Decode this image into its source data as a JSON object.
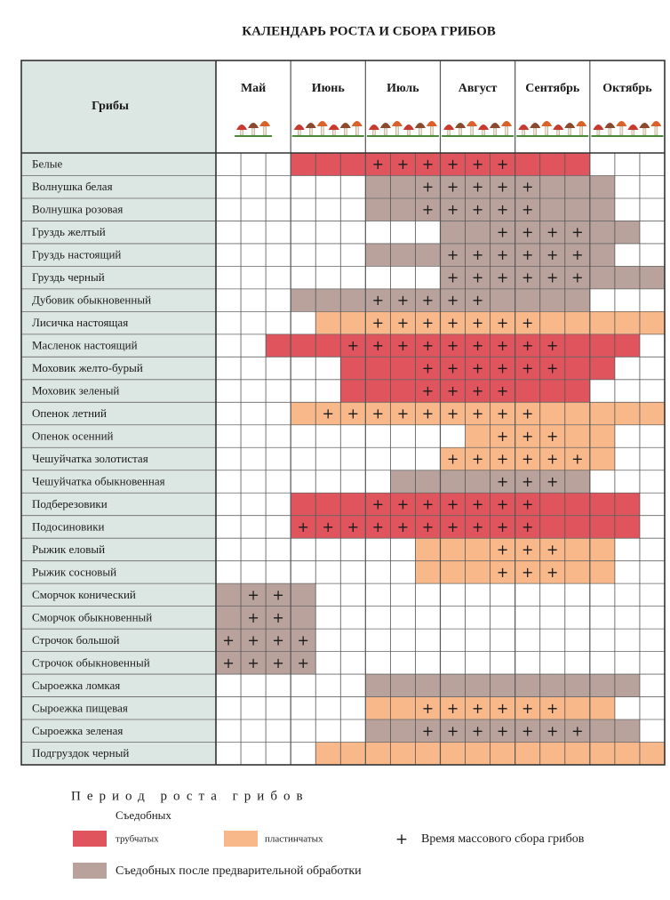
{
  "title": "КАЛЕНДАРЬ РОСТА И СБОРА ГРИБОВ",
  "header": {
    "corner": "Грибы",
    "months": [
      "Май",
      "Июнь",
      "Июль",
      "Август",
      "Сентябрь",
      "Октябрь"
    ]
  },
  "rows": [
    {
      "name": "Белые",
      "kind": 0,
      "period": [
        4,
        15
      ],
      "harvest": [
        7,
        12
      ]
    },
    {
      "name": "Волнушка белая",
      "kind": 2,
      "period": [
        7,
        16
      ],
      "harvest": [
        9,
        13
      ]
    },
    {
      "name": "Волнушка розовая",
      "kind": 2,
      "period": [
        7,
        16
      ],
      "harvest": [
        9,
        13
      ]
    },
    {
      "name": "Груздь желтый",
      "kind": 2,
      "period": [
        10,
        17
      ],
      "harvest": [
        12,
        15
      ]
    },
    {
      "name": "Груздь настоящий",
      "kind": 2,
      "period": [
        7,
        16
      ],
      "harvest": [
        10,
        15
      ]
    },
    {
      "name": "Груздь черный",
      "kind": 2,
      "period": [
        10,
        18
      ],
      "harvest": [
        10,
        15
      ]
    },
    {
      "name": "Дубовик обыкновенный",
      "kind": 2,
      "period": [
        4,
        15
      ],
      "harvest": [
        7,
        11
      ]
    },
    {
      "name": "Лисичка настоящая",
      "kind": 1,
      "period": [
        5,
        18
      ],
      "harvest": [
        7,
        13
      ]
    },
    {
      "name": "Масленок настоящий",
      "kind": 0,
      "period": [
        3,
        17
      ],
      "harvest": [
        6,
        14
      ]
    },
    {
      "name": "Моховик желто-бурый",
      "kind": 0,
      "period": [
        6,
        16
      ],
      "harvest": [
        9,
        14
      ]
    },
    {
      "name": "Моховик зеленый",
      "kind": 0,
      "period": [
        6,
        15
      ],
      "harvest": [
        9,
        12
      ]
    },
    {
      "name": "Опенок летний",
      "kind": 1,
      "period": [
        4,
        18
      ],
      "harvest": [
        5,
        13
      ]
    },
    {
      "name": "Опенок осенний",
      "kind": 1,
      "period": [
        11,
        16
      ],
      "harvest": [
        12,
        14
      ]
    },
    {
      "name": "Чешуйчатка золотистая",
      "kind": 1,
      "period": [
        10,
        16
      ],
      "harvest": [
        10,
        15
      ]
    },
    {
      "name": "Чешуйчатка обыкновенная",
      "kind": 2,
      "period": [
        8,
        15
      ],
      "harvest": [
        12,
        14
      ]
    },
    {
      "name": "Подберезовики",
      "kind": 0,
      "period": [
        4,
        17
      ],
      "harvest": [
        7,
        13
      ]
    },
    {
      "name": "Подосиновики",
      "kind": 0,
      "period": [
        4,
        17
      ],
      "harvest": [
        4,
        13
      ]
    },
    {
      "name": "Рыжик еловый",
      "kind": 1,
      "period": [
        9,
        16
      ],
      "harvest": [
        12,
        14
      ]
    },
    {
      "name": "Рыжик сосновый",
      "kind": 1,
      "period": [
        9,
        16
      ],
      "harvest": [
        12,
        14
      ]
    },
    {
      "name": "Сморчок конический",
      "kind": 2,
      "period": [
        1,
        4
      ],
      "harvest": [
        2,
        3
      ]
    },
    {
      "name": "Сморчок обыкновенный",
      "kind": 2,
      "period": [
        1,
        4
      ],
      "harvest": [
        2,
        3
      ]
    },
    {
      "name": "Строчок большой",
      "kind": 2,
      "period": [
        1,
        4
      ],
      "harvest": [
        1,
        4
      ]
    },
    {
      "name": "Строчок обыкновенный",
      "kind": 2,
      "period": [
        1,
        4
      ],
      "harvest": [
        1,
        4
      ]
    },
    {
      "name": "Сыроежка ломкая",
      "kind": 2,
      "period": [
        7,
        17
      ],
      "harvest": null
    },
    {
      "name": "Сыроежка пищевая",
      "kind": 1,
      "period": [
        7,
        16
      ],
      "harvest": [
        9,
        14
      ]
    },
    {
      "name": "Сыроежка зеленая",
      "kind": 2,
      "period": [
        7,
        17
      ],
      "harvest": [
        9,
        15
      ]
    },
    {
      "name": "Подгруздок черный",
      "kind": 1,
      "period": [
        5,
        18
      ],
      "harvest": null
    }
  ],
  "legend": {
    "heading": "Период роста грибов",
    "subheading": "Съедобных",
    "kinds": [
      {
        "label": "трубчатых",
        "color": "#e0555d"
      },
      {
        "label": "пластинчатых",
        "color": "#f8b88a"
      },
      {
        "label": "Съедобных после предварительной обработки",
        "color": "#b9a29b"
      }
    ],
    "harvest": {
      "symbol": "+",
      "label": "Время массового сбора грибов"
    }
  }
}
